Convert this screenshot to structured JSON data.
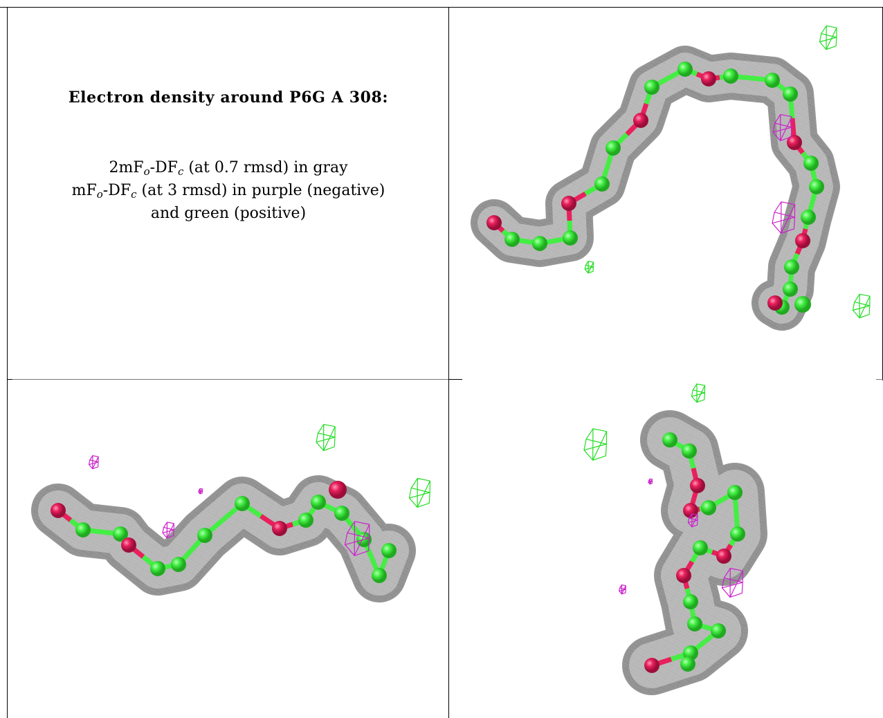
{
  "title": "Electron density around P6G A 308:",
  "legend": {
    "line1_prefix": "2mF",
    "line1_sub1": "o",
    "line1_mid": "-DF",
    "line1_sub2": "c",
    "line1_suffix": " (at 0.7 rmsd) in gray",
    "line2_prefix": "mF",
    "line2_sub1": "o",
    "line2_mid": "-DF",
    "line2_sub2": "c",
    "line2_suffix": " (at 3 rmsd) in purple (negative)",
    "line3": "and green (positive)"
  },
  "colors": {
    "mesh_gray": "#8a8a8a",
    "negative_purple": "#cc22cc",
    "positive_green": "#22dd22",
    "carbon_green": "#44ee44",
    "oxygen_red": "#e8205c"
  }
}
